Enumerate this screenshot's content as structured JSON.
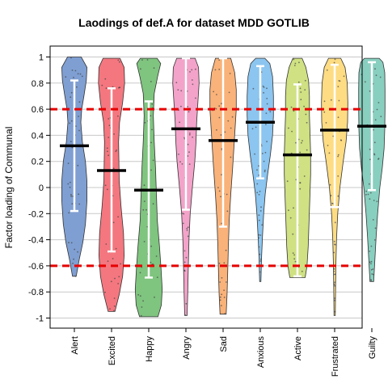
{
  "chart_data": {
    "type": "violin",
    "title": "Laodings of def.A for dataset MDD GOTLIB",
    "xlabel": "",
    "ylabel": "Factor loading of Communal",
    "ylim": [
      -1.05,
      1.05
    ],
    "yticks": [
      -1,
      -0.8,
      -0.6,
      -0.4,
      -0.2,
      0,
      0.2,
      0.4,
      0.6,
      0.8,
      1
    ],
    "ytick_labels": [
      "-1",
      "-0.8",
      "-0.6",
      "-0.4",
      "-0.2",
      "0",
      "0.2",
      "0.4",
      "0.6",
      "0.8",
      "1"
    ],
    "grid": true,
    "reference_lines": [
      0.6,
      -0.6
    ],
    "reference_line_color": "#e60000",
    "categories": [
      "Alert",
      "Excited",
      "Happy",
      "Angry",
      "Sad",
      "Anxious",
      "Active",
      "Frustrated",
      "Guilty"
    ],
    "colors": [
      "#7f9fd2",
      "#f4777f",
      "#7fc47f",
      "#f3a3c9",
      "#f9b279",
      "#8bc5f0",
      "#cfe182",
      "#fddc83",
      "#88cfbf"
    ],
    "series": [
      {
        "name": "Alert",
        "median": 0.32,
        "whisker_low": -0.18,
        "whisker_high": 0.82,
        "min": -0.68,
        "max": 1.0,
        "profile": [
          [
            -0.68,
            0.12
          ],
          [
            -0.55,
            0.32
          ],
          [
            -0.42,
            0.55
          ],
          [
            -0.28,
            0.72
          ],
          [
            -0.1,
            0.82
          ],
          [
            0.05,
            0.82
          ],
          [
            0.2,
            0.72
          ],
          [
            0.35,
            0.52
          ],
          [
            0.5,
            0.42
          ],
          [
            0.6,
            0.48
          ],
          [
            0.7,
            0.62
          ],
          [
            0.82,
            0.78
          ],
          [
            0.92,
            0.82
          ],
          [
            1.0,
            0.45
          ]
        ]
      },
      {
        "name": "Excited",
        "median": 0.13,
        "whisker_low": -0.49,
        "whisker_high": 0.76,
        "min": -0.95,
        "max": 0.99,
        "profile": [
          [
            -0.95,
            0.22
          ],
          [
            -0.82,
            0.5
          ],
          [
            -0.68,
            0.72
          ],
          [
            -0.52,
            0.82
          ],
          [
            -0.35,
            0.78
          ],
          [
            -0.15,
            0.62
          ],
          [
            0.05,
            0.5
          ],
          [
            0.2,
            0.48
          ],
          [
            0.35,
            0.46
          ],
          [
            0.5,
            0.52
          ],
          [
            0.65,
            0.72
          ],
          [
            0.8,
            0.85
          ],
          [
            0.92,
            0.82
          ],
          [
            0.99,
            0.55
          ]
        ]
      },
      {
        "name": "Happy",
        "median": -0.02,
        "whisker_low": -0.69,
        "whisker_high": 0.66,
        "min": -0.99,
        "max": 0.99,
        "profile": [
          [
            -0.99,
            0.6
          ],
          [
            -0.9,
            0.82
          ],
          [
            -0.78,
            0.88
          ],
          [
            -0.62,
            0.8
          ],
          [
            -0.45,
            0.7
          ],
          [
            -0.25,
            0.56
          ],
          [
            -0.05,
            0.5
          ],
          [
            0.15,
            0.44
          ],
          [
            0.35,
            0.36
          ],
          [
            0.55,
            0.3
          ],
          [
            0.72,
            0.36
          ],
          [
            0.85,
            0.58
          ],
          [
            0.95,
            0.78
          ],
          [
            0.99,
            0.55
          ]
        ]
      },
      {
        "name": "Angry",
        "median": 0.45,
        "whisker_low": -0.17,
        "whisker_high": 0.99,
        "min": -0.98,
        "max": 0.99,
        "profile": [
          [
            -0.98,
            0.08
          ],
          [
            -0.8,
            0.12
          ],
          [
            -0.6,
            0.16
          ],
          [
            -0.4,
            0.2
          ],
          [
            -0.2,
            0.28
          ],
          [
            0.0,
            0.42
          ],
          [
            0.2,
            0.58
          ],
          [
            0.35,
            0.66
          ],
          [
            0.5,
            0.7
          ],
          [
            0.65,
            0.78
          ],
          [
            0.8,
            0.86
          ],
          [
            0.92,
            0.82
          ],
          [
            0.99,
            0.6
          ]
        ]
      },
      {
        "name": "Sad",
        "median": 0.36,
        "whisker_low": -0.3,
        "whisker_high": 0.99,
        "min": -0.97,
        "max": 0.99,
        "profile": [
          [
            -0.97,
            0.2
          ],
          [
            -0.82,
            0.26
          ],
          [
            -0.65,
            0.3
          ],
          [
            -0.45,
            0.34
          ],
          [
            -0.25,
            0.4
          ],
          [
            -0.05,
            0.5
          ],
          [
            0.15,
            0.62
          ],
          [
            0.3,
            0.7
          ],
          [
            0.45,
            0.78
          ],
          [
            0.6,
            0.86
          ],
          [
            0.75,
            0.86
          ],
          [
            0.88,
            0.76
          ],
          [
            0.99,
            0.5
          ]
        ]
      },
      {
        "name": "Anxious",
        "median": 0.5,
        "whisker_low": 0.07,
        "whisker_high": 0.93,
        "min": -0.72,
        "max": 0.99,
        "profile": [
          [
            -0.72,
            0.04
          ],
          [
            -0.55,
            0.08
          ],
          [
            -0.38,
            0.14
          ],
          [
            -0.2,
            0.22
          ],
          [
            -0.05,
            0.32
          ],
          [
            0.1,
            0.48
          ],
          [
            0.25,
            0.66
          ],
          [
            0.4,
            0.8
          ],
          [
            0.55,
            0.86
          ],
          [
            0.7,
            0.86
          ],
          [
            0.85,
            0.8
          ],
          [
            0.95,
            0.62
          ],
          [
            0.99,
            0.3
          ]
        ]
      },
      {
        "name": "Active",
        "median": 0.25,
        "whisker_low": -0.68,
        "whisker_high": 0.79,
        "min": -0.69,
        "max": 0.99,
        "profile": [
          [
            -0.69,
            0.5
          ],
          [
            -0.6,
            0.62
          ],
          [
            -0.45,
            0.7
          ],
          [
            -0.3,
            0.74
          ],
          [
            -0.1,
            0.8
          ],
          [
            0.1,
            0.86
          ],
          [
            0.25,
            0.86
          ],
          [
            0.4,
            0.82
          ],
          [
            0.55,
            0.78
          ],
          [
            0.7,
            0.78
          ],
          [
            0.82,
            0.72
          ],
          [
            0.92,
            0.55
          ],
          [
            0.99,
            0.3
          ]
        ]
      },
      {
        "name": "Frustrated",
        "median": 0.44,
        "whisker_low": -0.15,
        "whisker_high": 0.94,
        "min": -0.98,
        "max": 0.99,
        "profile": [
          [
            -0.98,
            0.04
          ],
          [
            -0.8,
            0.06
          ],
          [
            -0.6,
            0.08
          ],
          [
            -0.4,
            0.12
          ],
          [
            -0.2,
            0.2
          ],
          [
            0.0,
            0.34
          ],
          [
            0.2,
            0.56
          ],
          [
            0.35,
            0.74
          ],
          [
            0.5,
            0.84
          ],
          [
            0.65,
            0.86
          ],
          [
            0.8,
            0.82
          ],
          [
            0.92,
            0.68
          ],
          [
            0.99,
            0.4
          ]
        ]
      },
      {
        "name": "Guilty",
        "median": 0.47,
        "whisker_low": -0.02,
        "whisker_high": 0.96,
        "min": -0.72,
        "max": 0.99,
        "profile": [
          [
            -0.72,
            0.12
          ],
          [
            -0.55,
            0.2
          ],
          [
            -0.38,
            0.28
          ],
          [
            -0.2,
            0.38
          ],
          [
            0.0,
            0.52
          ],
          [
            0.15,
            0.68
          ],
          [
            0.3,
            0.8
          ],
          [
            0.45,
            0.84
          ],
          [
            0.6,
            0.86
          ],
          [
            0.75,
            0.86
          ],
          [
            0.88,
            0.84
          ],
          [
            0.96,
            0.72
          ],
          [
            0.99,
            0.48
          ]
        ]
      }
    ]
  }
}
